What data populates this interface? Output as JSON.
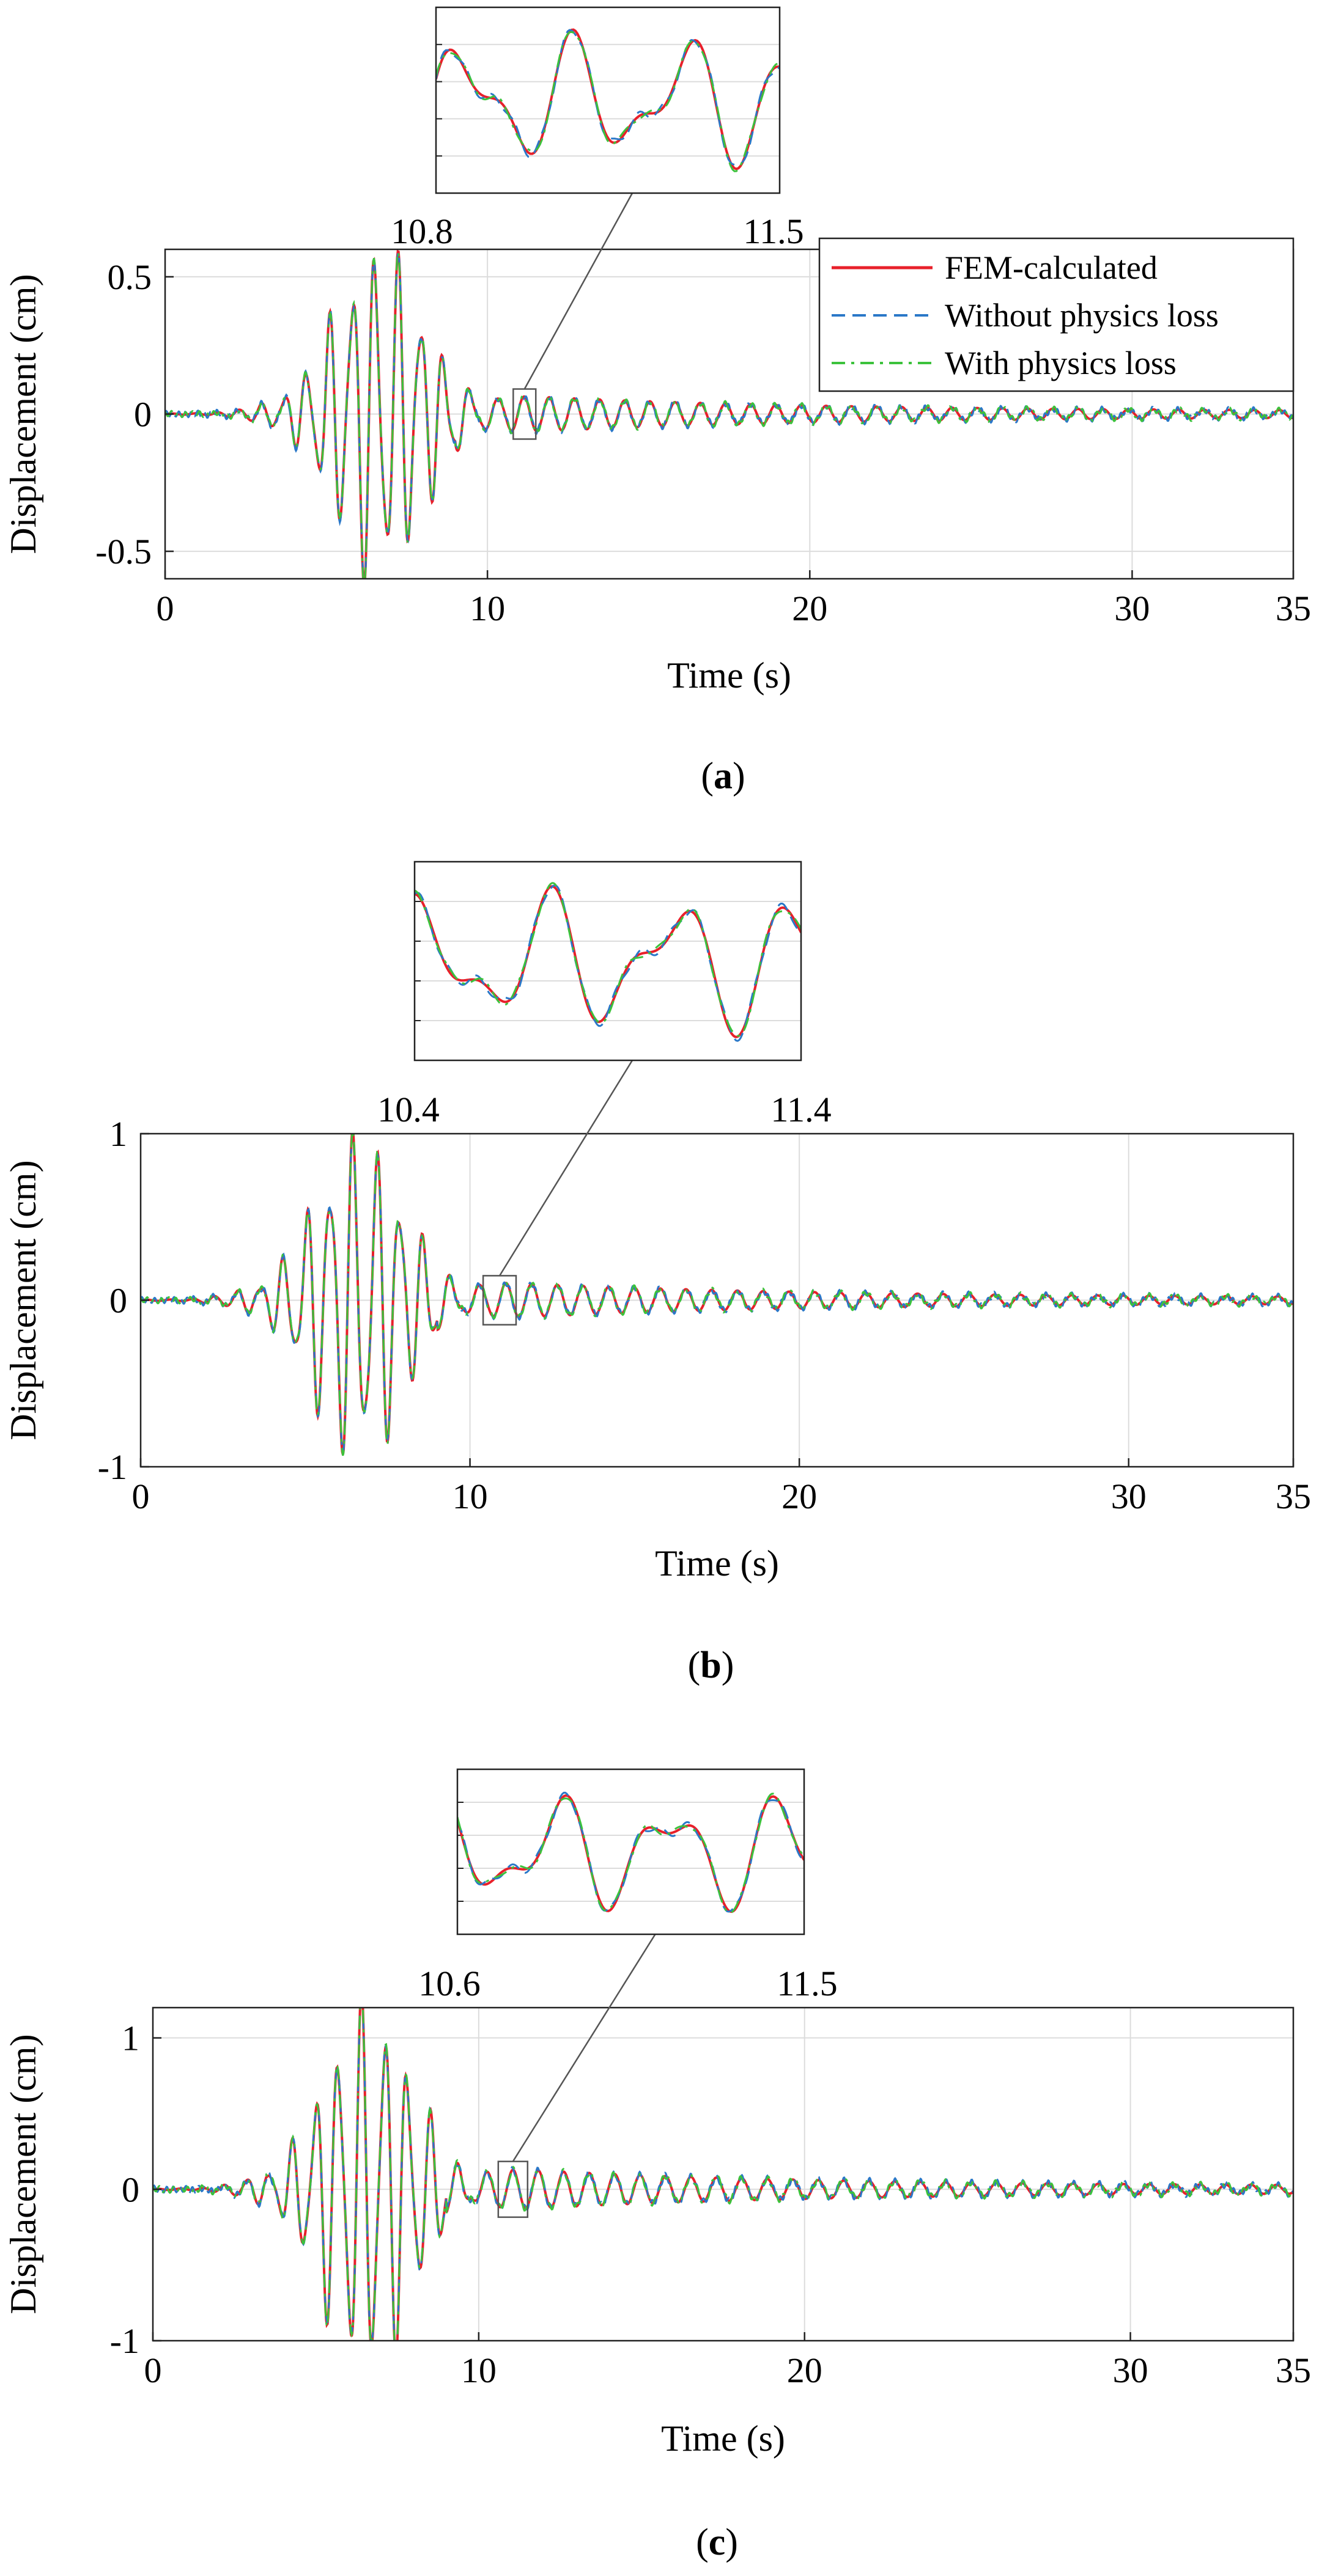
{
  "legend": {
    "entries": [
      {
        "label": "FEM-calculated",
        "color": "#e8202a",
        "dash": "solid"
      },
      {
        "label": "Without physics loss",
        "color": "#2a78c8",
        "dash": "dashed"
      },
      {
        "label": "With physics loss",
        "color": "#3cc23c",
        "dash": "dashdot"
      }
    ]
  },
  "chart_data": [
    {
      "type": "line",
      "panel_label": "a",
      "xlabel": "Time (s)",
      "ylabel": "Displacement (cm)",
      "xlim": [
        0,
        35
      ],
      "ylim": [
        -0.6,
        0.6
      ],
      "xticks": [
        0,
        10,
        20,
        30,
        35
      ],
      "yticks": [
        -0.5,
        0,
        0.5
      ],
      "grid": true,
      "legend": "top-right",
      "peak_max": 0.57,
      "peak_min": -0.51,
      "inset": {
        "xlim": [
          10.8,
          11.5
        ],
        "tick_labels": [
          "10.8",
          "11.5"
        ]
      },
      "series": [
        {
          "name": "FEM-calculated",
          "color": "#e8202a"
        },
        {
          "name": "Without physics loss",
          "color": "#2a78c8"
        },
        {
          "name": "With physics loss",
          "color": "#3cc23c"
        }
      ]
    },
    {
      "type": "line",
      "panel_label": "b",
      "xlabel": "Time (s)",
      "ylabel": "Displacement (cm)",
      "xlim": [
        0,
        35
      ],
      "ylim": [
        -1,
        1
      ],
      "xticks": [
        0,
        10,
        20,
        30,
        35
      ],
      "yticks": [
        -1,
        0,
        1
      ],
      "grid": true,
      "peak_max": 0.92,
      "peak_min": -0.83,
      "inset": {
        "xlim": [
          10.4,
          11.4
        ],
        "tick_labels": [
          "10.4",
          "11.4"
        ]
      },
      "series": [
        {
          "name": "FEM-calculated",
          "color": "#e8202a"
        },
        {
          "name": "Without physics loss",
          "color": "#2a78c8"
        },
        {
          "name": "With physics loss",
          "color": "#3cc23c"
        }
      ]
    },
    {
      "type": "line",
      "panel_label": "c",
      "xlabel": "Time (s)",
      "ylabel": "Displacement (cm)",
      "xlim": [
        0,
        35
      ],
      "ylim": [
        -1,
        1.2
      ],
      "xticks": [
        0,
        10,
        20,
        30,
        35
      ],
      "yticks": [
        -1,
        0,
        1
      ],
      "grid": true,
      "peak_max": 1.15,
      "peak_min": -0.98,
      "inset": {
        "xlim": [
          10.6,
          11.5
        ],
        "tick_labels": [
          "10.6",
          "11.5"
        ]
      },
      "series": [
        {
          "name": "FEM-calculated",
          "color": "#e8202a"
        },
        {
          "name": "Without physics loss",
          "color": "#2a78c8"
        },
        {
          "name": "With physics loss",
          "color": "#3cc23c"
        }
      ]
    }
  ]
}
